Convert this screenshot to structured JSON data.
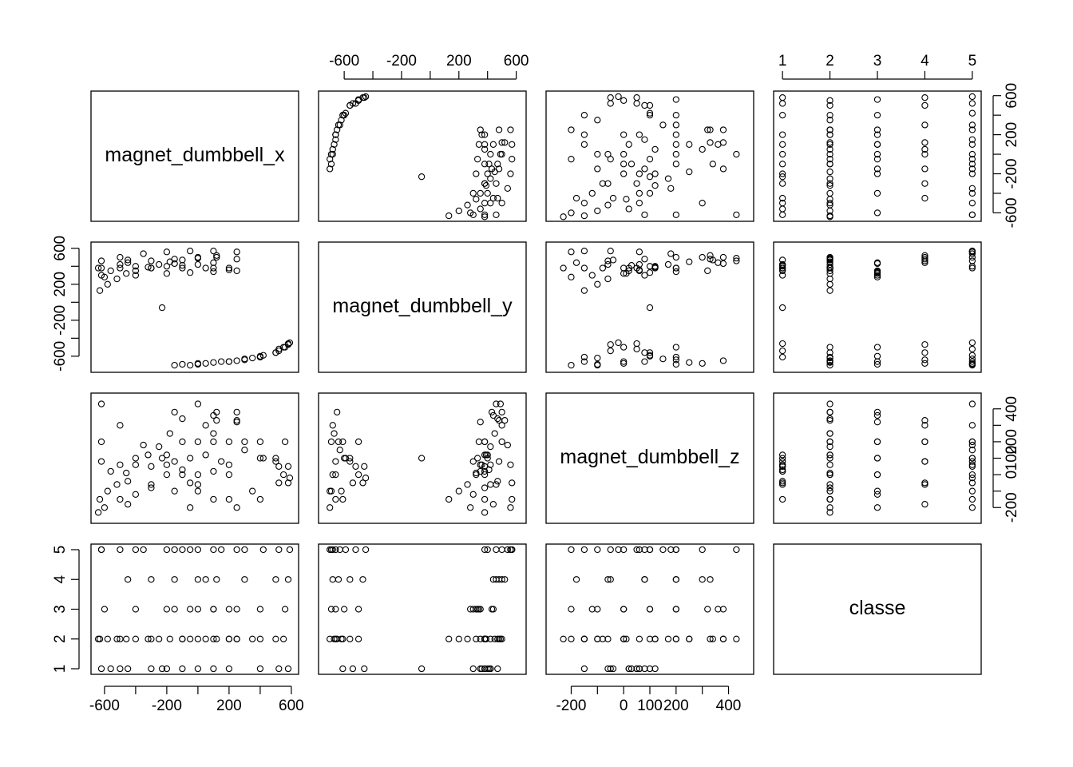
{
  "chart_data": {
    "type": "scatter",
    "title": "",
    "grid": false,
    "variables": [
      {
        "name": "magnet_dumbbell_x",
        "range": [
          -660,
          620
        ],
        "ticks": [
          -600,
          -400,
          -200,
          0,
          200,
          400,
          600
        ],
        "tick_labels": [
          "-600",
          "",
          "-200",
          "",
          "200",
          "",
          "600"
        ]
      },
      {
        "name": "magnet_dumbbell_y",
        "range": [
          -750,
          640
        ],
        "ticks": [
          -600,
          -400,
          -200,
          0,
          200,
          400,
          600
        ],
        "tick_labels": [
          "-600",
          "",
          "-200",
          "",
          "200",
          "",
          "600"
        ]
      },
      {
        "name": "magnet_dumbbell_z",
        "range": [
          -280,
          480
        ],
        "ticks": [
          -200,
          -100,
          0,
          100,
          200,
          300,
          400
        ],
        "tick_labels": [
          "-200",
          "",
          "0",
          "100",
          "200",
          "",
          "400"
        ]
      },
      {
        "name": "classe",
        "range": [
          0.9,
          5.1
        ],
        "ticks": [
          1,
          2,
          3,
          4,
          5
        ],
        "tick_labels": [
          "1",
          "2",
          "3",
          "4",
          "5"
        ]
      }
    ],
    "observations": [
      [
        -620,
        300,
        80,
        1
      ],
      [
        -560,
        350,
        20,
        1
      ],
      [
        -500,
        420,
        60,
        1
      ],
      [
        -450,
        470,
        -40,
        1
      ],
      [
        -300,
        380,
        50,
        1
      ],
      [
        -200,
        400,
        120,
        1
      ],
      [
        -100,
        410,
        30,
        1
      ],
      [
        0,
        420,
        -60,
        1
      ],
      [
        100,
        380,
        20,
        1
      ],
      [
        200,
        360,
        60,
        1
      ],
      [
        -630,
        130,
        -150,
        2
      ],
      [
        -580,
        200,
        -100,
        2
      ],
      [
        -520,
        260,
        -60,
        2
      ],
      [
        -460,
        320,
        10,
        2
      ],
      [
        -400,
        350,
        60,
        2
      ],
      [
        -320,
        390,
        120,
        2
      ],
      [
        -250,
        420,
        170,
        2
      ],
      [
        -180,
        450,
        250,
        2
      ],
      [
        -100,
        470,
        340,
        2
      ],
      [
        0,
        490,
        430,
        2
      ],
      [
        120,
        500,
        380,
        2
      ],
      [
        250,
        480,
        330,
        2
      ],
      [
        -640,
        380,
        -230,
        2
      ],
      [
        -500,
        380,
        -150,
        2
      ],
      [
        -300,
        380,
        -80,
        2
      ],
      [
        -100,
        380,
        0,
        2
      ],
      [
        50,
        380,
        120,
        2
      ],
      [
        200,
        380,
        200,
        2
      ],
      [
        -600,
        280,
        -200,
        3
      ],
      [
        -400,
        300,
        -120,
        3
      ],
      [
        -200,
        320,
        0,
        3
      ],
      [
        -50,
        330,
        100,
        3
      ],
      [
        100,
        340,
        200,
        3
      ],
      [
        250,
        350,
        320,
        3
      ],
      [
        -150,
        430,
        380,
        3
      ],
      [
        100,
        440,
        360,
        3
      ],
      [
        -450,
        440,
        -180,
        4
      ],
      [
        -300,
        460,
        -60,
        4
      ],
      [
        -150,
        480,
        80,
        4
      ],
      [
        0,
        500,
        200,
        4
      ],
      [
        120,
        520,
        330,
        4
      ],
      [
        -620,
        460,
        430,
        5
      ],
      [
        -500,
        500,
        300,
        5
      ],
      [
        -350,
        540,
        180,
        5
      ],
      [
        -200,
        560,
        60,
        5
      ],
      [
        -50,
        570,
        -50,
        5
      ],
      [
        100,
        570,
        -150,
        5
      ],
      [
        250,
        560,
        -200,
        5
      ],
      [
        -620,
        380,
        200,
        5
      ],
      [
        -400,
        400,
        100,
        5
      ],
      [
        -150,
        -700,
        -100,
        5
      ],
      [
        0,
        -680,
        0,
        5
      ],
      [
        150,
        -660,
        80,
        5
      ],
      [
        300,
        -630,
        150,
        5
      ],
      [
        420,
        -590,
        100,
        5
      ],
      [
        520,
        -520,
        50,
        5
      ],
      [
        590,
        -450,
        -20,
        5
      ],
      [
        -100,
        -690,
        200,
        5
      ],
      [
        100,
        -670,
        250,
        2
      ],
      [
        250,
        -650,
        380,
        2
      ],
      [
        400,
        -610,
        200,
        2
      ],
      [
        500,
        -560,
        100,
        2
      ],
      [
        -50,
        -700,
        -200,
        2
      ],
      [
        200,
        -660,
        -150,
        2
      ],
      [
        350,
        -620,
        -100,
        2
      ],
      [
        550,
        -500,
        0,
        2
      ],
      [
        0,
        -690,
        -100,
        3
      ],
      [
        200,
        -660,
        0,
        3
      ],
      [
        400,
        -600,
        100,
        3
      ],
      [
        560,
        -500,
        200,
        3
      ],
      [
        50,
        -680,
        300,
        4
      ],
      [
        300,
        -640,
        200,
        4
      ],
      [
        500,
        -560,
        80,
        4
      ],
      [
        580,
        -470,
        -50,
        4
      ],
      [
        400,
        -610,
        -150,
        1
      ],
      [
        520,
        -540,
        -50,
        1
      ],
      [
        580,
        -460,
        50,
        1
      ],
      [
        -230,
        -60,
        100,
        1
      ]
    ]
  }
}
